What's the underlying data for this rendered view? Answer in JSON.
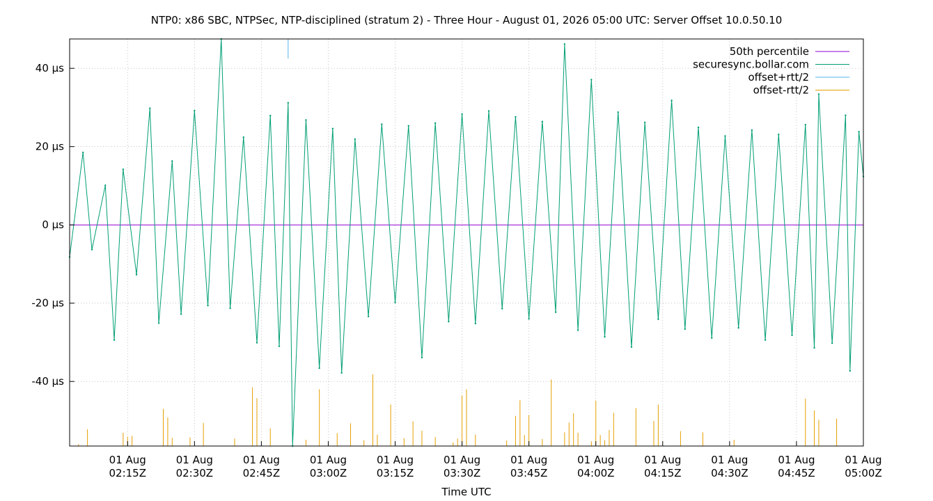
{
  "chart_data": {
    "type": "line",
    "title": "NTP0: x86 SBC, NTPSec, NTP-disciplined (stratum 2) - Three Hour - August 01, 2026 05:00 UTC: Server Offset 10.0.50.10",
    "xlabel": "Time UTC",
    "ylabel": "",
    "grid": true,
    "legend_position": "top-right",
    "x_range": [
      "2026-08-01T02:02Z",
      "2026-08-01T05:00Z"
    ],
    "y_range_us": [
      -56.5,
      47.5
    ],
    "x_ticks": [
      {
        "time": "2026-08-01T02:15Z",
        "line1": "01 Aug",
        "line2": "02:15Z"
      },
      {
        "time": "2026-08-01T02:30Z",
        "line1": "01 Aug",
        "line2": "02:30Z"
      },
      {
        "time": "2026-08-01T02:45Z",
        "line1": "01 Aug",
        "line2": "02:45Z"
      },
      {
        "time": "2026-08-01T03:00Z",
        "line1": "01 Aug",
        "line2": "03:00Z"
      },
      {
        "time": "2026-08-01T03:15Z",
        "line1": "01 Aug",
        "line2": "03:15Z"
      },
      {
        "time": "2026-08-01T03:30Z",
        "line1": "01 Aug",
        "line2": "03:30Z"
      },
      {
        "time": "2026-08-01T03:45Z",
        "line1": "01 Aug",
        "line2": "03:45Z"
      },
      {
        "time": "2026-08-01T04:00Z",
        "line1": "01 Aug",
        "line2": "04:00Z"
      },
      {
        "time": "2026-08-01T04:15Z",
        "line1": "01 Aug",
        "line2": "04:15Z"
      },
      {
        "time": "2026-08-01T04:30Z",
        "line1": "01 Aug",
        "line2": "04:30Z"
      },
      {
        "time": "2026-08-01T04:45Z",
        "line1": "01 Aug",
        "line2": "04:45Z"
      },
      {
        "time": "2026-08-01T05:00Z",
        "line1": "01 Aug",
        "line2": "05:00Z"
      }
    ],
    "y_ticks": [
      {
        "value": 40,
        "label": "40 µs"
      },
      {
        "value": 20,
        "label": "20 µs"
      },
      {
        "value": 0,
        "label": "0 µs"
      },
      {
        "value": -20,
        "label": "-20 µs"
      },
      {
        "value": -40,
        "label": "-40 µs"
      }
    ],
    "series": [
      {
        "name": "50th percentile",
        "color": "#9400d3",
        "values": [
          {
            "time": "2026-08-01T02:02Z",
            "offset_us": 0.0
          },
          {
            "time": "2026-08-01T05:00Z",
            "offset_us": 0.0
          }
        ]
      },
      {
        "name": "securesync.bollar.com",
        "color": "#009e73",
        "values": [
          {
            "time": "2026-08-01T02:02Z",
            "offset_us": -8.2
          },
          {
            "time": "2026-08-01T02:05Z",
            "offset_us": 18.5
          },
          {
            "time": "2026-08-01T02:07Z",
            "offset_us": -6.3
          },
          {
            "time": "2026-08-01T02:10Z",
            "offset_us": 10.1
          },
          {
            "time": "2026-08-01T02:12Z",
            "offset_us": -29.4
          },
          {
            "time": "2026-08-01T02:14Z",
            "offset_us": 14.2
          },
          {
            "time": "2026-08-01T02:17Z",
            "offset_us": -12.7
          },
          {
            "time": "2026-08-01T02:20Z",
            "offset_us": 29.8
          },
          {
            "time": "2026-08-01T02:22Z",
            "offset_us": -25.1
          },
          {
            "time": "2026-08-01T02:25Z",
            "offset_us": 16.3
          },
          {
            "time": "2026-08-01T02:27Z",
            "offset_us": -22.8
          },
          {
            "time": "2026-08-01T02:30Z",
            "offset_us": 29.2
          },
          {
            "time": "2026-08-01T02:33Z",
            "offset_us": -20.6
          },
          {
            "time": "2026-08-01T02:36Z",
            "offset_us": 47.5
          },
          {
            "time": "2026-08-01T02:38Z",
            "offset_us": -21.3
          },
          {
            "time": "2026-08-01T02:41Z",
            "offset_us": 22.4
          },
          {
            "time": "2026-08-01T02:44Z",
            "offset_us": -30.1
          },
          {
            "time": "2026-08-01T02:47Z",
            "offset_us": 27.9
          },
          {
            "time": "2026-08-01T02:49Z",
            "offset_us": -31.0
          },
          {
            "time": "2026-08-01T02:51Z",
            "offset_us": 31.2
          },
          {
            "time": "2026-08-01T02:52Z",
            "offset_us": -56.5
          },
          {
            "time": "2026-08-01T02:55Z",
            "offset_us": 26.8
          },
          {
            "time": "2026-08-01T02:58Z",
            "offset_us": -36.6
          },
          {
            "time": "2026-08-01T03:01Z",
            "offset_us": 24.6
          },
          {
            "time": "2026-08-01T03:03Z",
            "offset_us": -37.8
          },
          {
            "time": "2026-08-01T03:06Z",
            "offset_us": 21.9
          },
          {
            "time": "2026-08-01T03:09Z",
            "offset_us": -23.4
          },
          {
            "time": "2026-08-01T03:12Z",
            "offset_us": 25.7
          },
          {
            "time": "2026-08-01T03:15Z",
            "offset_us": -19.8
          },
          {
            "time": "2026-08-01T03:18Z",
            "offset_us": 25.3
          },
          {
            "time": "2026-08-01T03:21Z",
            "offset_us": -33.9
          },
          {
            "time": "2026-08-01T03:24Z",
            "offset_us": 26.0
          },
          {
            "time": "2026-08-01T03:27Z",
            "offset_us": -24.7
          },
          {
            "time": "2026-08-01T03:30Z",
            "offset_us": 28.3
          },
          {
            "time": "2026-08-01T03:33Z",
            "offset_us": -25.2
          },
          {
            "time": "2026-08-01T03:36Z",
            "offset_us": 29.1
          },
          {
            "time": "2026-08-01T03:39Z",
            "offset_us": -21.4
          },
          {
            "time": "2026-08-01T03:42Z",
            "offset_us": 27.6
          },
          {
            "time": "2026-08-01T03:45Z",
            "offset_us": -24.0
          },
          {
            "time": "2026-08-01T03:48Z",
            "offset_us": 26.4
          },
          {
            "time": "2026-08-01T03:51Z",
            "offset_us": -22.3
          },
          {
            "time": "2026-08-01T03:53Z",
            "offset_us": 46.2
          },
          {
            "time": "2026-08-01T03:56Z",
            "offset_us": -26.9
          },
          {
            "time": "2026-08-01T03:59Z",
            "offset_us": 37.1
          },
          {
            "time": "2026-08-01T04:02Z",
            "offset_us": -28.6
          },
          {
            "time": "2026-08-01T04:05Z",
            "offset_us": 28.8
          },
          {
            "time": "2026-08-01T04:08Z",
            "offset_us": -31.2
          },
          {
            "time": "2026-08-01T04:11Z",
            "offset_us": 26.2
          },
          {
            "time": "2026-08-01T04:14Z",
            "offset_us": -24.1
          },
          {
            "time": "2026-08-01T04:17Z",
            "offset_us": 31.8
          },
          {
            "time": "2026-08-01T04:20Z",
            "offset_us": -26.6
          },
          {
            "time": "2026-08-01T04:23Z",
            "offset_us": 24.9
          },
          {
            "time": "2026-08-01T04:26Z",
            "offset_us": -28.9
          },
          {
            "time": "2026-08-01T04:29Z",
            "offset_us": 22.7
          },
          {
            "time": "2026-08-01T04:32Z",
            "offset_us": -26.3
          },
          {
            "time": "2026-08-01T04:35Z",
            "offset_us": 24.2
          },
          {
            "time": "2026-08-01T04:38Z",
            "offset_us": -29.4
          },
          {
            "time": "2026-08-01T04:41Z",
            "offset_us": 23.1
          },
          {
            "time": "2026-08-01T04:44Z",
            "offset_us": -28.2
          },
          {
            "time": "2026-08-01T04:47Z",
            "offset_us": 25.6
          },
          {
            "time": "2026-08-01T04:49Z",
            "offset_us": -31.4
          },
          {
            "time": "2026-08-01T04:50Z",
            "offset_us": 33.4
          },
          {
            "time": "2026-08-01T04:53Z",
            "offset_us": -30.2
          },
          {
            "time": "2026-08-01T04:56Z",
            "offset_us": 28.0
          },
          {
            "time": "2026-08-01T04:57Z",
            "offset_us": -37.3
          },
          {
            "time": "2026-08-01T04:59Z",
            "offset_us": 23.8
          },
          {
            "time": "2026-08-01T05:00Z",
            "offset_us": 12.4
          }
        ]
      },
      {
        "name": "offset+rtt/2",
        "color": "#56b4e9",
        "values": [
          {
            "time": "2026-08-01T02:51Z",
            "offset_us": 47.5
          },
          {
            "time": "2026-08-01T02:51Z",
            "offset_us": 42.5
          }
        ]
      },
      {
        "name": "offset-rtt/2",
        "color": "#e69f00",
        "values": [
          {
            "time": "2026-08-01T02:04Z",
            "offset_us": -56.0
          },
          {
            "time": "2026-08-01T02:06Z",
            "offset_us": -52.2
          },
          {
            "time": "2026-08-01T02:14Z",
            "offset_us": -53.1
          },
          {
            "time": "2026-08-01T02:15Z",
            "offset_us": -54.1
          },
          {
            "time": "2026-08-01T02:16Z",
            "offset_us": -53.9
          },
          {
            "time": "2026-08-01T02:23Z",
            "offset_us": -47.0
          },
          {
            "time": "2026-08-01T02:24Z",
            "offset_us": -49.2
          },
          {
            "time": "2026-08-01T02:25Z",
            "offset_us": -54.4
          },
          {
            "time": "2026-08-01T02:29Z",
            "offset_us": -54.3
          },
          {
            "time": "2026-08-01T02:32Z",
            "offset_us": -50.6
          },
          {
            "time": "2026-08-01T02:39Z",
            "offset_us": -54.6
          },
          {
            "time": "2026-08-01T02:43Z",
            "offset_us": -41.5
          },
          {
            "time": "2026-08-01T02:44Z",
            "offset_us": -44.3
          },
          {
            "time": "2026-08-01T02:47Z",
            "offset_us": -52.0
          },
          {
            "time": "2026-08-01T02:55Z",
            "offset_us": -54.9
          },
          {
            "time": "2026-08-01T02:58Z",
            "offset_us": -42.0
          },
          {
            "time": "2026-08-01T03:02Z",
            "offset_us": -53.2
          },
          {
            "time": "2026-08-01T03:05Z",
            "offset_us": -50.7
          },
          {
            "time": "2026-08-01T03:08Z",
            "offset_us": -55.0
          },
          {
            "time": "2026-08-01T03:10Z",
            "offset_us": -38.2
          },
          {
            "time": "2026-08-01T03:11Z",
            "offset_us": -53.6
          },
          {
            "time": "2026-08-01T03:14Z",
            "offset_us": -45.9
          },
          {
            "time": "2026-08-01T03:17Z",
            "offset_us": -54.5
          },
          {
            "time": "2026-08-01T03:19Z",
            "offset_us": -50.2
          },
          {
            "time": "2026-08-01T03:21Z",
            "offset_us": -52.6
          },
          {
            "time": "2026-08-01T03:24Z",
            "offset_us": -54.2
          },
          {
            "time": "2026-08-01T03:28Z",
            "offset_us": -55.6
          },
          {
            "time": "2026-08-01T03:29Z",
            "offset_us": -54.6
          },
          {
            "time": "2026-08-01T03:30Z",
            "offset_us": -43.6
          },
          {
            "time": "2026-08-01T03:31Z",
            "offset_us": -42.0
          },
          {
            "time": "2026-08-01T03:33Z",
            "offset_us": -53.6
          },
          {
            "time": "2026-08-01T03:40Z",
            "offset_us": -55.1
          },
          {
            "time": "2026-08-01T03:42Z",
            "offset_us": -48.8
          },
          {
            "time": "2026-08-01T03:43Z",
            "offset_us": -44.8
          },
          {
            "time": "2026-08-01T03:44Z",
            "offset_us": -53.7
          },
          {
            "time": "2026-08-01T03:45Z",
            "offset_us": -48.6
          },
          {
            "time": "2026-08-01T03:48Z",
            "offset_us": -54.7
          },
          {
            "time": "2026-08-01T03:50Z",
            "offset_us": -39.5
          },
          {
            "time": "2026-08-01T03:53Z",
            "offset_us": -53.0
          },
          {
            "time": "2026-08-01T03:54Z",
            "offset_us": -50.5
          },
          {
            "time": "2026-08-01T03:55Z",
            "offset_us": -48.1
          },
          {
            "time": "2026-08-01T03:56Z",
            "offset_us": -53.1
          },
          {
            "time": "2026-08-01T03:59Z",
            "offset_us": -55.3
          },
          {
            "time": "2026-08-01T04:00Z",
            "offset_us": -44.9
          },
          {
            "time": "2026-08-01T04:01Z",
            "offset_us": -53.7
          },
          {
            "time": "2026-08-01T04:02Z",
            "offset_us": -55.0
          },
          {
            "time": "2026-08-01T04:03Z",
            "offset_us": -52.4
          },
          {
            "time": "2026-08-01T04:04Z",
            "offset_us": -48.0
          },
          {
            "time": "2026-08-01T04:09Z",
            "offset_us": -46.8
          },
          {
            "time": "2026-08-01T04:13Z",
            "offset_us": -50.1
          },
          {
            "time": "2026-08-01T04:14Z",
            "offset_us": -45.9
          },
          {
            "time": "2026-08-01T04:19Z",
            "offset_us": -52.7
          },
          {
            "time": "2026-08-01T04:24Z",
            "offset_us": -53.0
          },
          {
            "time": "2026-08-01T04:31Z",
            "offset_us": -54.9
          },
          {
            "time": "2026-08-01T04:47Z",
            "offset_us": -44.4
          },
          {
            "time": "2026-08-01T04:49Z",
            "offset_us": -47.4
          },
          {
            "time": "2026-08-01T04:50Z",
            "offset_us": -49.8
          },
          {
            "time": "2026-08-01T04:54Z",
            "offset_us": -49.5
          }
        ]
      }
    ]
  }
}
